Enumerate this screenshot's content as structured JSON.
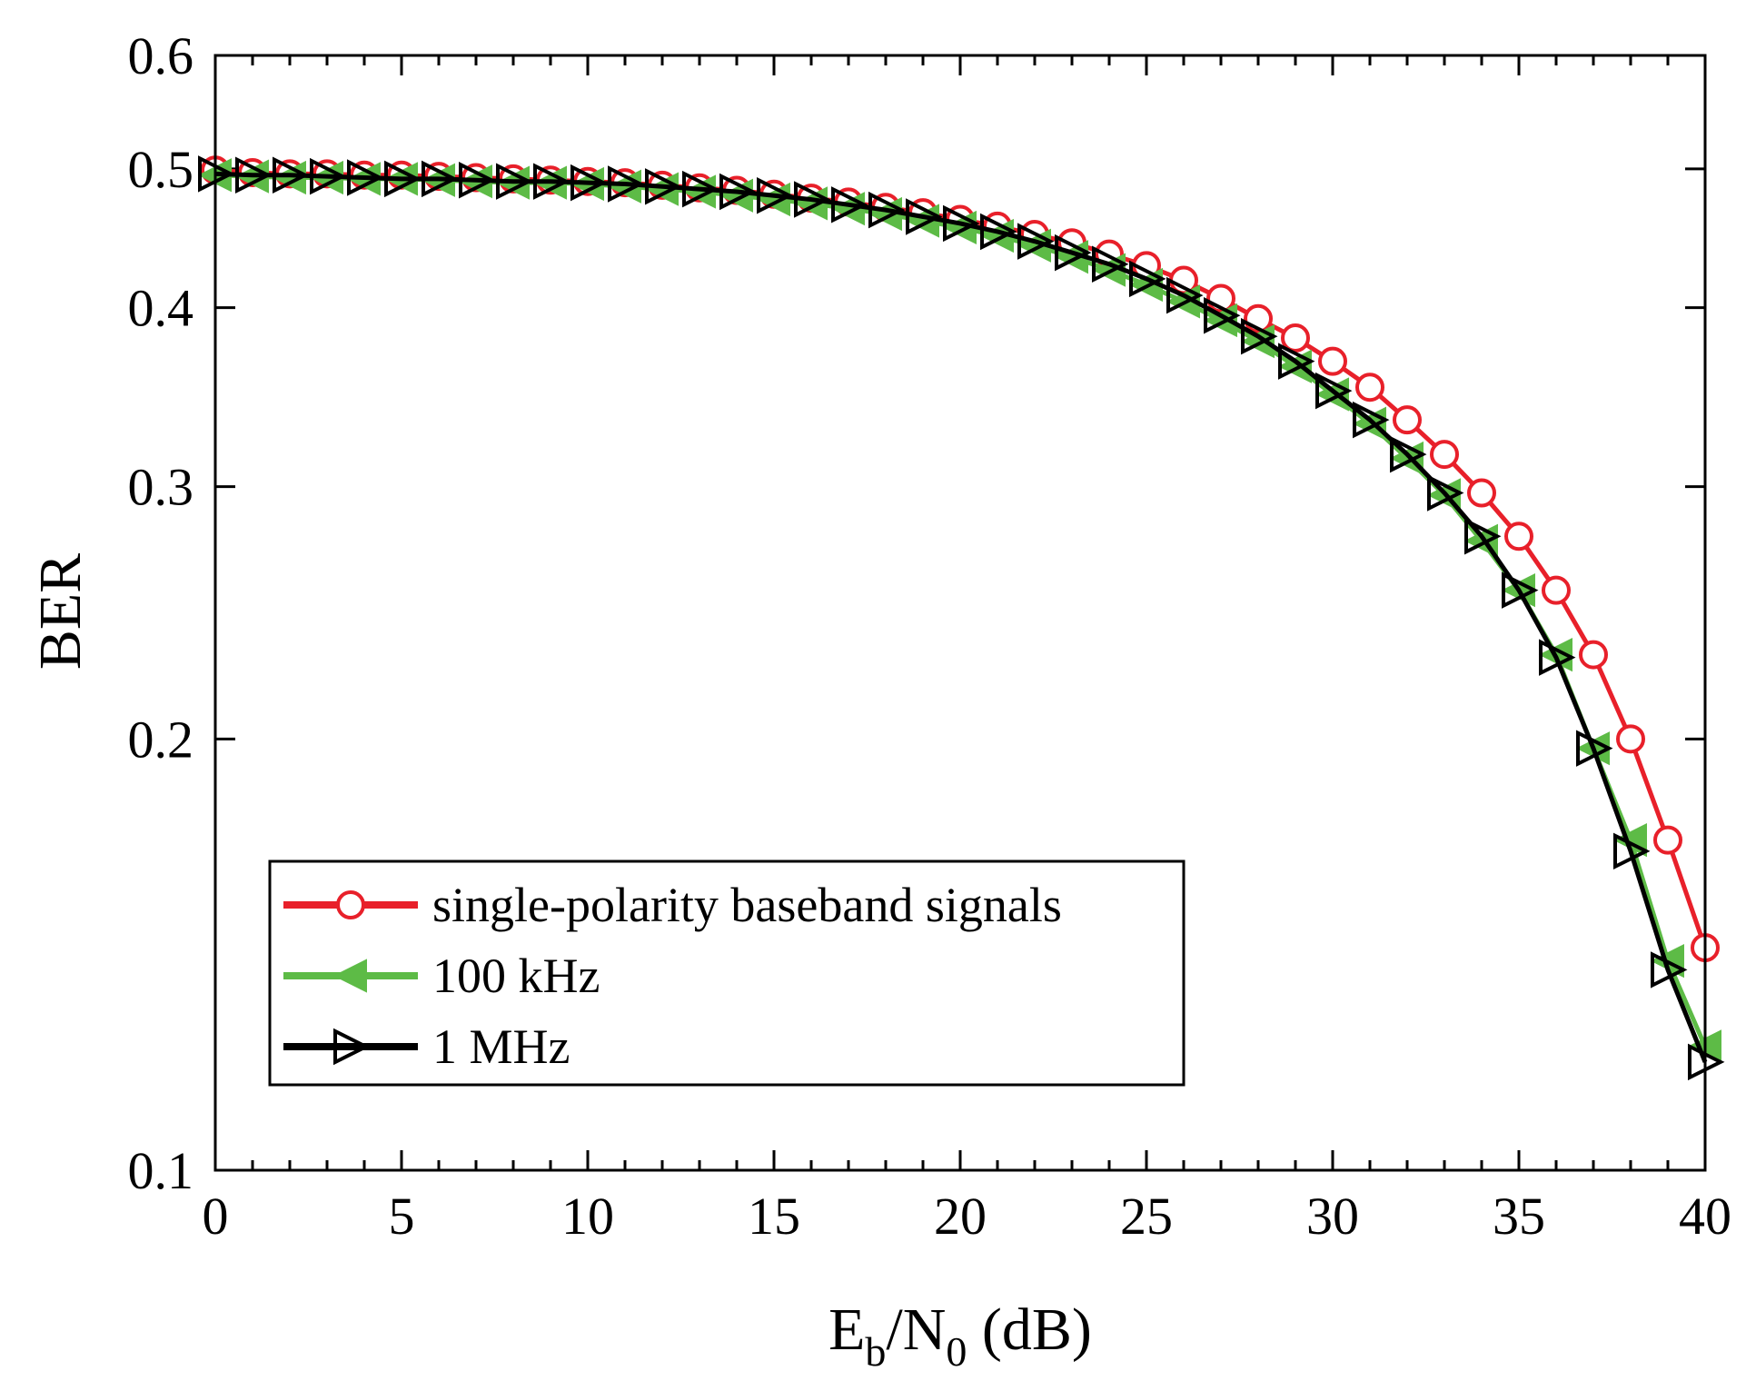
{
  "chart_data": {
    "type": "line",
    "x_scale": "linear",
    "y_scale": "log",
    "xlabel": {
      "main": "E",
      "sub1": "b",
      "mid": "/N",
      "sub2": "0",
      "tail": " (dB)"
    },
    "ylabel": "BER",
    "xlim": [
      0,
      40
    ],
    "ylim": [
      0.1,
      0.6
    ],
    "x_ticks": [
      0,
      5,
      10,
      15,
      20,
      25,
      30,
      35,
      40
    ],
    "x_tick_labels": [
      "0",
      "5",
      "10",
      "15",
      "20",
      "25",
      "30",
      "35",
      "40"
    ],
    "y_ticks": [
      0.1,
      0.2,
      0.3,
      0.4,
      0.5,
      0.6
    ],
    "y_tick_labels": [
      "0.1",
      "0.2",
      "0.3",
      "0.4",
      "0.5",
      "0.6"
    ],
    "legend_position": "lower-left",
    "x": [
      0,
      1,
      2,
      3,
      4,
      5,
      6,
      7,
      8,
      9,
      10,
      11,
      12,
      13,
      14,
      15,
      16,
      17,
      18,
      19,
      20,
      21,
      22,
      23,
      24,
      25,
      26,
      27,
      28,
      29,
      30,
      31,
      32,
      33,
      34,
      35,
      36,
      37,
      38,
      39,
      40
    ],
    "series": [
      {
        "name": "single-polarity baseband signals",
        "color": "#e8202a",
        "marker": "circle",
        "values": [
          0.499,
          0.497,
          0.496,
          0.496,
          0.495,
          0.495,
          0.494,
          0.493,
          0.492,
          0.491,
          0.49,
          0.489,
          0.487,
          0.485,
          0.483,
          0.48,
          0.477,
          0.474,
          0.47,
          0.466,
          0.461,
          0.456,
          0.45,
          0.444,
          0.436,
          0.428,
          0.418,
          0.406,
          0.393,
          0.381,
          0.367,
          0.352,
          0.334,
          0.316,
          0.297,
          0.277,
          0.254,
          0.229,
          0.2,
          0.17,
          0.143
        ]
      },
      {
        "name": "100 kHz",
        "color": "#5dbb46",
        "marker": "triangle-left",
        "values": [
          0.495,
          0.494,
          0.493,
          0.493,
          0.492,
          0.492,
          0.491,
          0.49,
          0.489,
          0.489,
          0.488,
          0.486,
          0.484,
          0.482,
          0.479,
          0.476,
          0.473,
          0.469,
          0.465,
          0.46,
          0.455,
          0.449,
          0.442,
          0.434,
          0.425,
          0.415,
          0.404,
          0.392,
          0.379,
          0.364,
          0.348,
          0.332,
          0.314,
          0.296,
          0.275,
          0.254,
          0.229,
          0.197,
          0.17,
          0.14,
          0.122
        ]
      },
      {
        "name": "1 MHz",
        "color": "#000000",
        "marker": "triangle-right",
        "values": [
          0.496,
          0.495,
          0.495,
          0.494,
          0.493,
          0.492,
          0.492,
          0.491,
          0.49,
          0.49,
          0.489,
          0.488,
          0.486,
          0.484,
          0.482,
          0.479,
          0.476,
          0.472,
          0.468,
          0.463,
          0.458,
          0.452,
          0.445,
          0.437,
          0.429,
          0.419,
          0.408,
          0.395,
          0.382,
          0.367,
          0.35,
          0.334,
          0.316,
          0.297,
          0.277,
          0.254,
          0.228,
          0.197,
          0.167,
          0.138,
          0.119
        ]
      }
    ]
  }
}
